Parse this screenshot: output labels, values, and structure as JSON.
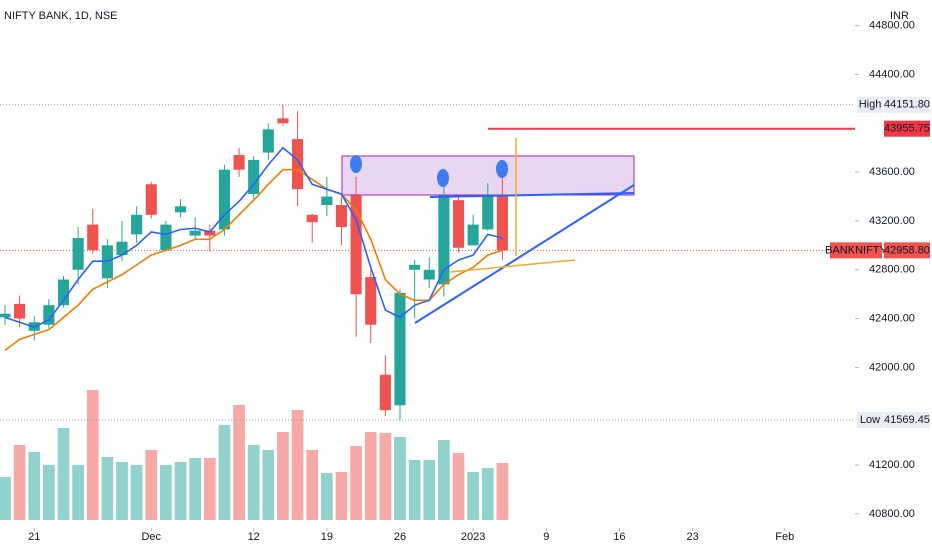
{
  "chart_data": {
    "type": "candlestick",
    "title": "NIFTY BANK, 1D, NSE",
    "currency": "INR",
    "up_color": "#26a69a",
    "down_color": "#ef5350",
    "fast_ma_color": "#2962ff",
    "slow_ma_color": "#f57c00",
    "open": [
      42410,
      42520,
      42300,
      42350,
      42510,
      42800,
      43170,
      42730,
      42920,
      43090,
      43500,
      42960,
      43270,
      43080,
      43120,
      43130,
      43740,
      43420,
      43760,
      44040,
      43870,
      43250,
      43330,
      43330,
      43410,
      42740,
      41940,
      41690,
      42800,
      42720,
      42680,
      43370,
      43000,
      43130,
      43400
    ],
    "high": [
      42510,
      42590,
      42420,
      42560,
      42750,
      43150,
      43300,
      43050,
      43200,
      43320,
      43520,
      43200,
      43380,
      43230,
      43170,
      43660,
      43800,
      43730,
      44000,
      44151.8,
      44100,
      43260,
      43560,
      43400,
      43560,
      42800,
      42100,
      42640,
      42880,
      42900,
      43560,
      43400,
      43250,
      43510,
      43560
    ],
    "low": [
      42350,
      42330,
      42220,
      42320,
      42490,
      42680,
      42930,
      42650,
      42870,
      43020,
      43220,
      42950,
      43230,
      43050,
      42950,
      43080,
      43560,
      43380,
      43700,
      43980,
      43320,
      43020,
      43240,
      43000,
      42250,
      42200,
      41600,
      41569.45,
      42400,
      42650,
      42580,
      42940,
      43000,
      43120,
      42880
    ],
    "close": [
      42440,
      42400,
      42370,
      42510,
      42720,
      43060,
      42960,
      43000,
      43030,
      43250,
      43250,
      43170,
      43320,
      43120,
      43080,
      43620,
      43620,
      43700,
      43950,
      44000,
      43460,
      43190,
      43400,
      43150,
      42600,
      42350,
      41650,
      42610,
      42840,
      42800,
      43410,
      42980,
      43170,
      43410,
      42958.8
    ],
    "volume": [
      43,
      75,
      68,
      55,
      92,
      55,
      130,
      63,
      58,
      55,
      70,
      55,
      58,
      62,
      62,
      95,
      115,
      75,
      70,
      88,
      110,
      70,
      47,
      48,
      74,
      88,
      87,
      83,
      60,
      60,
      80,
      67,
      48,
      52,
      57
    ],
    "fast_ma": [
      42410,
      42370,
      42330,
      42390,
      42550,
      42720,
      42870,
      42870,
      42920,
      43000,
      43110,
      43090,
      43130,
      43140,
      43110,
      43250,
      43360,
      43500,
      43660,
      43800,
      43700,
      43500,
      43460,
      43420,
      43210,
      42820,
      42470,
      42410,
      42510,
      42550,
      42800,
      42880,
      42920,
      43090,
      43060
    ],
    "slow_ma": [
      42140,
      42230,
      42270,
      42310,
      42410,
      42510,
      42640,
      42700,
      42760,
      42840,
      42920,
      42960,
      43000,
      43050,
      43050,
      43130,
      43250,
      43370,
      43500,
      43620,
      43620,
      43540,
      43460,
      43420,
      43290,
      43050,
      42720,
      42600,
      42550,
      42550,
      42680,
      42760,
      42820,
      42920,
      42960
    ],
    "xlim": [
      -0.34,
      58.1
    ],
    "xticks": [
      {
        "value": 2,
        "label": "21"
      },
      {
        "value": 10,
        "label": "Dec"
      },
      {
        "value": 17,
        "label": "12"
      },
      {
        "value": 22,
        "label": "19"
      },
      {
        "value": 27,
        "label": "26"
      },
      {
        "value": 32,
        "label": "2023"
      },
      {
        "value": 37,
        "label": "9"
      },
      {
        "value": 42,
        "label": "16"
      },
      {
        "value": 47,
        "label": "23"
      },
      {
        "value": 53.3,
        "label": "Feb"
      }
    ],
    "ylim": [
      40750,
      45010
    ],
    "yticks": [
      {
        "value": 40800,
        "label": "40800.00"
      },
      {
        "value": 41200,
        "label": "41200.00"
      },
      {
        "value": 42000,
        "label": "42000.00"
      },
      {
        "value": 42400,
        "label": "42400.00"
      },
      {
        "value": 42800,
        "label": "42800.00"
      },
      {
        "value": 43200,
        "label": "43200.00"
      },
      {
        "value": 43600,
        "label": "43600.00"
      },
      {
        "value": 44400,
        "label": "44400.00"
      },
      {
        "value": 44800,
        "label": "44800.00"
      }
    ],
    "annotations": {
      "high": {
        "label": "High",
        "value": 44151.8,
        "value_label": "44151.80"
      },
      "low": {
        "label": "Low",
        "value": 41569.45,
        "value_label": "41569.45"
      },
      "last": {
        "label": "BANKNIFTY",
        "value": 42958.8,
        "value_label": "42958.80"
      },
      "level": {
        "value": 43955.75,
        "value_label": "43955.75"
      }
    }
  }
}
